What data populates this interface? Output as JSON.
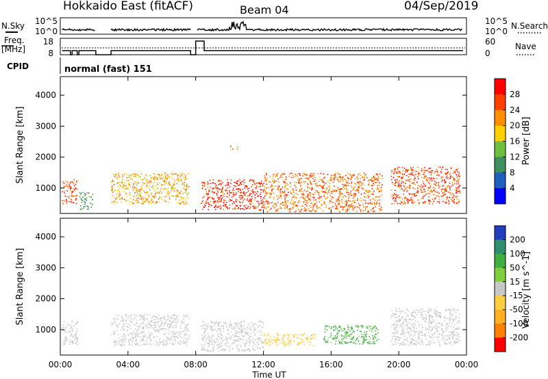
{
  "header": {
    "station": "Hokkaido East (fitACF)",
    "beam": "Beam 04",
    "date": "04/Sep/2019"
  },
  "strips": {
    "nsky_label": "N.Sky",
    "nsearch_label": "N.Search",
    "nsky_ticks": [
      "10^5",
      "10^0"
    ],
    "nsearch_ticks": [
      "10^5",
      "10^0"
    ],
    "freq_label_1": "Freq.",
    "freq_label_2": "[MHz]",
    "freq_ticks": [
      "18",
      "8"
    ],
    "nave_label": "Nave",
    "nave_ticks": [
      "60",
      "0"
    ],
    "cpid_label": "CPID",
    "cpid_value": "normal (fast) 151"
  },
  "chart_data": [
    {
      "type": "heatmap",
      "title": "",
      "xlabel": "Time UT",
      "ylabel": "Slant Range [km]",
      "x_ticks": [
        "00:00",
        "04:00",
        "08:00",
        "12:00",
        "16:00",
        "20:00",
        "00:00"
      ],
      "xlim_hours": [
        0,
        24
      ],
      "y_ticks": [
        1000,
        2000,
        3000,
        4000
      ],
      "ylim_km": [
        180,
        4600
      ],
      "colorbar": {
        "label": "Power [dB]",
        "ticks": [
          4,
          8,
          12,
          16,
          20,
          24,
          28
        ],
        "range": [
          0,
          32
        ],
        "colors": [
          "#0000ff",
          "#1f5fbf",
          "#3f8f5f",
          "#6fbf3f",
          "#ffcf00",
          "#ff8f00",
          "#ff3f00",
          "#ff0000"
        ]
      },
      "echo_regions": [
        {
          "t_start": 0.1,
          "t_end": 1.0,
          "r_low": 500,
          "r_high": 1300,
          "value": 26
        },
        {
          "t_start": 1.1,
          "t_end": 1.9,
          "r_low": 300,
          "r_high": 900,
          "value": 12
        },
        {
          "t_start": 3.0,
          "t_end": 7.6,
          "r_low": 500,
          "r_high": 1500,
          "value": 20
        },
        {
          "t_start": 8.3,
          "t_end": 12.0,
          "r_low": 300,
          "r_high": 1300,
          "value": 28
        },
        {
          "t_start": 10.0,
          "t_end": 10.5,
          "r_low": 2250,
          "r_high": 2400,
          "value": 16
        },
        {
          "t_start": 12.0,
          "t_end": 19.0,
          "r_low": 250,
          "r_high": 1500,
          "value": 24
        },
        {
          "t_start": 19.5,
          "t_end": 23.6,
          "r_low": 500,
          "r_high": 1700,
          "value": 26
        }
      ]
    },
    {
      "type": "heatmap",
      "title": "",
      "xlabel": "Time UT",
      "ylabel": "Slant Range [km]",
      "x_ticks": [
        "00:00",
        "04:00",
        "08:00",
        "12:00",
        "16:00",
        "20:00",
        "00:00"
      ],
      "xlim_hours": [
        0,
        24
      ],
      "y_ticks": [
        1000,
        2000,
        3000,
        4000
      ],
      "ylim_km": [
        180,
        4600
      ],
      "colorbar": {
        "label": "Velocity [m s^-1]",
        "ticks": [
          200,
          100,
          50,
          15,
          -15,
          -50,
          -100,
          -200
        ],
        "colors": [
          "#1f3fbf",
          "#2f8f6f",
          "#3faf3f",
          "#7fcf3f",
          "#c8c8c8",
          "#ffcf3f",
          "#ffaf1f",
          "#ff7f00",
          "#ff0000"
        ]
      },
      "echo_regions": [
        {
          "t_start": 0.1,
          "t_end": 1.0,
          "r_low": 500,
          "r_high": 1300,
          "value": 0
        },
        {
          "t_start": 3.0,
          "t_end": 7.6,
          "r_low": 500,
          "r_high": 1500,
          "value": 0
        },
        {
          "t_start": 8.3,
          "t_end": 12.0,
          "r_low": 300,
          "r_high": 1300,
          "value": 0
        },
        {
          "t_start": 12.0,
          "t_end": 15.0,
          "r_low": 500,
          "r_high": 900,
          "value": -40
        },
        {
          "t_start": 15.5,
          "t_end": 18.8,
          "r_low": 550,
          "r_high": 1150,
          "value": 60
        },
        {
          "t_start": 19.5,
          "t_end": 23.6,
          "r_low": 500,
          "r_high": 1700,
          "value": 0
        }
      ]
    }
  ]
}
